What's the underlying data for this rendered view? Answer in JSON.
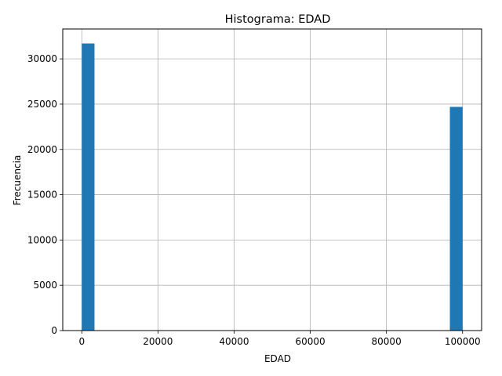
{
  "chart_data": {
    "type": "bar",
    "title": "Histograma: EDAD",
    "xlabel": "EDAD",
    "ylabel": "Frecuencia",
    "bin_range": [
      0,
      100000
    ],
    "bin_count": 30,
    "bins": [
      {
        "x_start": 0,
        "x_end": 3333.33,
        "count": 31700
      },
      {
        "x_start": 96666.67,
        "x_end": 100000,
        "count": 24700
      }
    ],
    "xlim": [
      -5000,
      105000
    ],
    "ylim": [
      0,
      33300
    ],
    "xticks": [
      0,
      20000,
      40000,
      60000,
      80000,
      100000
    ],
    "xtick_labels": [
      "0",
      "20000",
      "40000",
      "60000",
      "80000",
      "100000"
    ],
    "yticks": [
      0,
      5000,
      10000,
      15000,
      20000,
      25000,
      30000
    ],
    "ytick_labels": [
      "0",
      "5000",
      "10000",
      "15000",
      "20000",
      "25000",
      "30000"
    ],
    "grid": true,
    "colors": {
      "bar": "#1f77b4",
      "grid": "#b0b0b0"
    }
  }
}
